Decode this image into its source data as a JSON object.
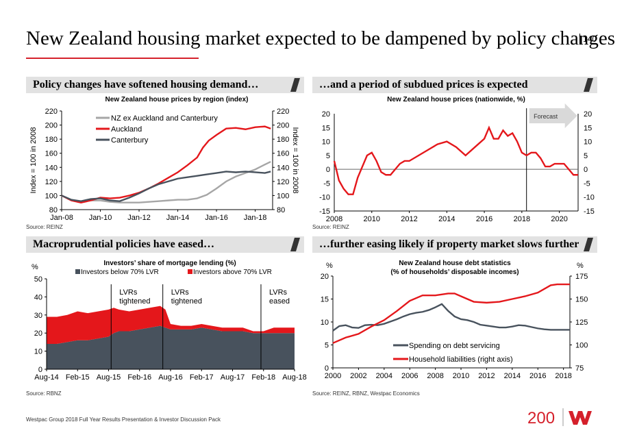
{
  "header": {
    "title": "New Zealand housing market expected to be dampened by policy changes",
    "page_number": "140"
  },
  "panels": {
    "p1": "Policy changes have softened housing demand…",
    "p2": "…and a period of subdued prices is expected",
    "p3": "Macroprudential policies have eased…",
    "p4": "…further easing likely if property market slows further"
  },
  "sources": {
    "p1": "Source: REINZ",
    "p2": "Source: REINZ",
    "p3": "Source: RBNZ",
    "p4": "Source: REINZ, RBNZ, Westpac Economics"
  },
  "footer": {
    "text": "Westpac Group 2018 Full Year Results Presentation & Investor Discussion Pack",
    "logo_number": "200"
  },
  "colors": {
    "red": "#e4171b",
    "dark": "#48525d",
    "grey": "#a6a6a6",
    "accent": "#d5202b"
  },
  "chart_data": [
    {
      "id": "c1",
      "type": "line",
      "title": "New Zealand house prices by region (index)",
      "ylabel": "Index = 100 in 2008",
      "ylabel_right": "Index = 100 in 2008",
      "ylim": [
        80,
        220
      ],
      "yticks": [
        80,
        100,
        120,
        140,
        160,
        180,
        200,
        220
      ],
      "xlim": [
        2008.0,
        2018.9
      ],
      "xticks": [
        {
          "v": 2008.0,
          "label": "Jan-08"
        },
        {
          "v": 2010.0,
          "label": "Jan-10"
        },
        {
          "v": 2012.0,
          "label": "Jan-12"
        },
        {
          "v": 2014.0,
          "label": "Jan-14"
        },
        {
          "v": 2016.0,
          "label": "Jan-16"
        },
        {
          "v": 2018.0,
          "label": "Jan-18"
        }
      ],
      "series": [
        {
          "name": "NZ ex Auckland and Canterbury",
          "color": "#a6a6a6",
          "x": [
            2008.0,
            2008.5,
            2009.0,
            2009.5,
            2010.0,
            2010.5,
            2011.0,
            2011.5,
            2012.0,
            2012.5,
            2013.0,
            2013.5,
            2014.0,
            2014.5,
            2015.0,
            2015.5,
            2016.0,
            2016.5,
            2017.0,
            2017.5,
            2018.0,
            2018.5,
            2018.8
          ],
          "y": [
            100,
            94,
            91,
            93,
            93,
            91,
            90,
            90,
            90,
            91,
            92,
            93,
            94,
            94,
            96,
            101,
            110,
            120,
            127,
            132,
            137,
            144,
            148
          ]
        },
        {
          "name": "Auckland",
          "color": "#e4171b",
          "x": [
            2008.0,
            2008.5,
            2009.0,
            2009.5,
            2010.0,
            2010.5,
            2011.0,
            2011.5,
            2012.0,
            2012.5,
            2013.0,
            2013.5,
            2014.0,
            2014.5,
            2015.0,
            2015.3,
            2015.6,
            2016.0,
            2016.5,
            2017.0,
            2017.5,
            2018.0,
            2018.5,
            2018.8
          ],
          "y": [
            100,
            93,
            90,
            93,
            97,
            96,
            97,
            100,
            104,
            110,
            117,
            125,
            133,
            143,
            154,
            168,
            178,
            186,
            195,
            196,
            194,
            197,
            198,
            195
          ]
        },
        {
          "name": "Canterbury",
          "color": "#48525d",
          "x": [
            2008.0,
            2008.5,
            2009.0,
            2009.5,
            2010.0,
            2010.5,
            2011.0,
            2011.5,
            2012.0,
            2012.5,
            2013.0,
            2013.5,
            2014.0,
            2014.5,
            2015.0,
            2015.5,
            2016.0,
            2016.5,
            2017.0,
            2017.5,
            2018.0,
            2018.5,
            2018.8
          ],
          "y": [
            100,
            94,
            92,
            95,
            96,
            93,
            92,
            97,
            103,
            110,
            116,
            120,
            124,
            126,
            128,
            130,
            132,
            134,
            133,
            134,
            133,
            132,
            134
          ]
        }
      ],
      "legend_position": "top-left"
    },
    {
      "id": "c2",
      "type": "line",
      "title": "New Zealand house prices (nationwide, %)",
      "ylim": [
        -15,
        20
      ],
      "yticks": [
        -15,
        -10,
        -5,
        0,
        5,
        10,
        15,
        20
      ],
      "xlim": [
        2008.0,
        2021.0
      ],
      "xticks": [
        2008,
        2010,
        2012,
        2014,
        2016,
        2018,
        2020
      ],
      "forecast_start": 2018.25,
      "annotation": "Forecast",
      "series": [
        {
          "name": "",
          "color": "#e4171b",
          "x": [
            2008.0,
            2008.25,
            2008.5,
            2008.75,
            2009.0,
            2009.25,
            2009.5,
            2009.75,
            2010.0,
            2010.25,
            2010.5,
            2010.75,
            2011.0,
            2011.25,
            2011.5,
            2011.75,
            2012.0,
            2012.5,
            2013.0,
            2013.5,
            2014.0,
            2014.5,
            2015.0,
            2015.5,
            2016.0,
            2016.25,
            2016.5,
            2016.75,
            2017.0,
            2017.25,
            2017.5,
            2017.75,
            2018.0,
            2018.25,
            2018.5,
            2018.75,
            2019.0,
            2019.25,
            2019.5,
            2019.75,
            2020.0,
            2020.25,
            2020.5,
            2020.75,
            2021.0
          ],
          "y": [
            3,
            -4,
            -7,
            -9,
            -9,
            -3,
            1,
            5,
            6,
            3,
            -1,
            -2,
            -2,
            0,
            2,
            3,
            3,
            5,
            7,
            9,
            10,
            8,
            5,
            8,
            11,
            15,
            11,
            11,
            14,
            12,
            13,
            10,
            6,
            5,
            6,
            6,
            4,
            1,
            1,
            2,
            2,
            2,
            0,
            -2,
            -2
          ]
        }
      ]
    },
    {
      "id": "c3",
      "type": "area",
      "title": "Investors’ share of mortgage lending (%)",
      "ylabel": "%",
      "ylim": [
        0,
        50
      ],
      "yticks": [
        0,
        10,
        20,
        30,
        40,
        50
      ],
      "xlim": [
        0,
        48
      ],
      "xticks": [
        {
          "v": 0,
          "label": "Aug-14"
        },
        {
          "v": 6,
          "label": "Feb-15"
        },
        {
          "v": 12,
          "label": "Aug-15"
        },
        {
          "v": 18,
          "label": "Feb-16"
        },
        {
          "v": 24,
          "label": "Aug-16"
        },
        {
          "v": 30,
          "label": "Feb-17"
        },
        {
          "v": 36,
          "label": "Aug-17"
        },
        {
          "v": 42,
          "label": "Feb-18"
        },
        {
          "v": 48,
          "label": "Aug-18"
        }
      ],
      "x": [
        0,
        2,
        4,
        6,
        8,
        10,
        12,
        13,
        14,
        16,
        18,
        20,
        22,
        23,
        24,
        26,
        28,
        30,
        32,
        34,
        36,
        38,
        40,
        42,
        44,
        46,
        48
      ],
      "series": [
        {
          "name": "Investors below 70% LVR",
          "color": "#48525d",
          "values": [
            14,
            14,
            15,
            16,
            16,
            17,
            18,
            20,
            21,
            21,
            22,
            23,
            24,
            23,
            22,
            22,
            22,
            23,
            22,
            21,
            21,
            21,
            20,
            20,
            20,
            20,
            20
          ]
        },
        {
          "name": "Investors above 70% LVR",
          "color": "#e4171b",
          "values": [
            15,
            15,
            15,
            16,
            15,
            15,
            15,
            14,
            12,
            11,
            11,
            11,
            11,
            10,
            3,
            2,
            2,
            2,
            2,
            2,
            2,
            2,
            1,
            1,
            3,
            3,
            3
          ]
        }
      ],
      "annotations": [
        {
          "x": 12.5,
          "text": [
            "LVRs",
            "tightened"
          ]
        },
        {
          "x": 22.5,
          "text": [
            "LVRs",
            "tightened"
          ]
        },
        {
          "x": 41.5,
          "text": [
            "LVRs",
            "eased"
          ]
        }
      ],
      "legend_position": "top"
    },
    {
      "id": "c4",
      "type": "line",
      "title": "New Zealand house debt statistics",
      "subtitle": "(% of households’ disposable incomes)",
      "ylabel": "%",
      "ylabel_right": "%",
      "ylim": [
        0,
        20
      ],
      "yticks": [
        0,
        5,
        10,
        15,
        20
      ],
      "ylim_right": [
        75,
        175
      ],
      "yticks_right": [
        75,
        100,
        125,
        150,
        175
      ],
      "xlim": [
        2000,
        2018.5
      ],
      "xticks": [
        2000,
        2002,
        2004,
        2006,
        2008,
        2010,
        2012,
        2014,
        2016,
        2018
      ],
      "series": [
        {
          "name": "Spending on debt servicing",
          "color": "#48525d",
          "axis": "left",
          "x": [
            2000,
            2000.5,
            2001,
            2001.5,
            2002,
            2002.5,
            2003,
            2003.5,
            2004,
            2004.5,
            2005,
            2005.5,
            2006,
            2006.5,
            2007,
            2007.5,
            2008,
            2008.5,
            2009,
            2009.5,
            2010,
            2010.5,
            2011,
            2011.5,
            2012,
            2012.5,
            2013,
            2013.5,
            2014,
            2014.5,
            2015,
            2015.5,
            2016,
            2016.5,
            2017,
            2017.5,
            2018,
            2018.5
          ],
          "y": [
            8.1,
            9.1,
            9.3,
            8.8,
            8.7,
            9.3,
            9.4,
            9.3,
            9.6,
            10.1,
            10.6,
            11.2,
            11.7,
            12,
            12.2,
            12.6,
            13.2,
            13.9,
            12.4,
            11.2,
            10.6,
            10.4,
            10.0,
            9.4,
            9.2,
            9.0,
            8.8,
            8.8,
            9.0,
            9.3,
            9.2,
            8.9,
            8.6,
            8.4,
            8.3,
            8.3,
            8.3,
            8.3
          ]
        },
        {
          "name": "Household liabilities (right axis)",
          "color": "#e4171b",
          "axis": "right",
          "x": [
            2000,
            2001,
            2002,
            2003,
            2004,
            2005,
            2006,
            2007,
            2008,
            2009,
            2009.5,
            2010,
            2011,
            2012,
            2013,
            2014,
            2015,
            2016,
            2017,
            2017.5,
            2018,
            2018.5
          ],
          "y": [
            102,
            108,
            112,
            120,
            127,
            137,
            148,
            154,
            154,
            156,
            156,
            153,
            147,
            146,
            147,
            150,
            153,
            157,
            165,
            166,
            166,
            166
          ]
        }
      ],
      "legend_position": "bottom-center"
    }
  ]
}
